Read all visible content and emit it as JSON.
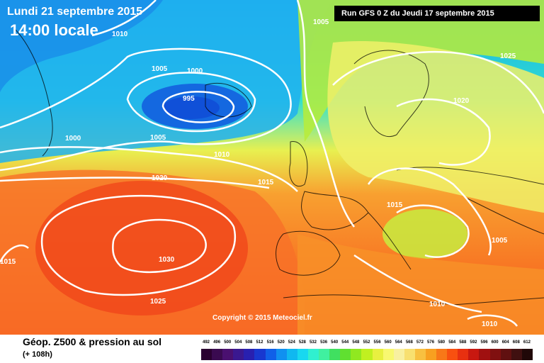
{
  "header": {
    "date": "Lundi 21 septembre 2015",
    "time": "14:00 locale",
    "run": "Run GFS 0 Z du Jeudi 17 septembre 2015"
  },
  "footer": {
    "copyright": "Copyright © 2015 Meteociel.fr",
    "legend_title": "Géop. Z500 & pression au sol",
    "legend_subtitle": "(+ 108h)"
  },
  "isobar_labels": [
    "1010",
    "1005",
    "1000",
    "995",
    "1005",
    "1000",
    "1005",
    "1010",
    "1020",
    "1015",
    "1015",
    "1015",
    "1030",
    "1025",
    "1020",
    "1025",
    "1005",
    "1010",
    "1010"
  ],
  "scale": {
    "labels": [
      "492",
      "496",
      "500",
      "504",
      "508",
      "512",
      "516",
      "520",
      "524",
      "528",
      "532",
      "536",
      "540",
      "544",
      "548",
      "552",
      "556",
      "560",
      "564",
      "568",
      "572",
      "576",
      "580",
      "584",
      "588",
      "592",
      "596",
      "600",
      "604",
      "608",
      "612"
    ],
    "colors": [
      "#2a0030",
      "#3a0a50",
      "#4a1070",
      "#3a1890",
      "#2820b0",
      "#1838d0",
      "#1060e8",
      "#1090f0",
      "#10b8f0",
      "#18d8f0",
      "#30f0d0",
      "#40f0a0",
      "#40e060",
      "#60e030",
      "#90e820",
      "#c0f020",
      "#e8f040",
      "#f8f870",
      "#f8f0a0",
      "#f8e070",
      "#f8c040",
      "#f8a020",
      "#f87818",
      "#f85010",
      "#e83010",
      "#c81810",
      "#a01010",
      "#801010",
      "#601010",
      "#401010",
      "#200808"
    ]
  }
}
